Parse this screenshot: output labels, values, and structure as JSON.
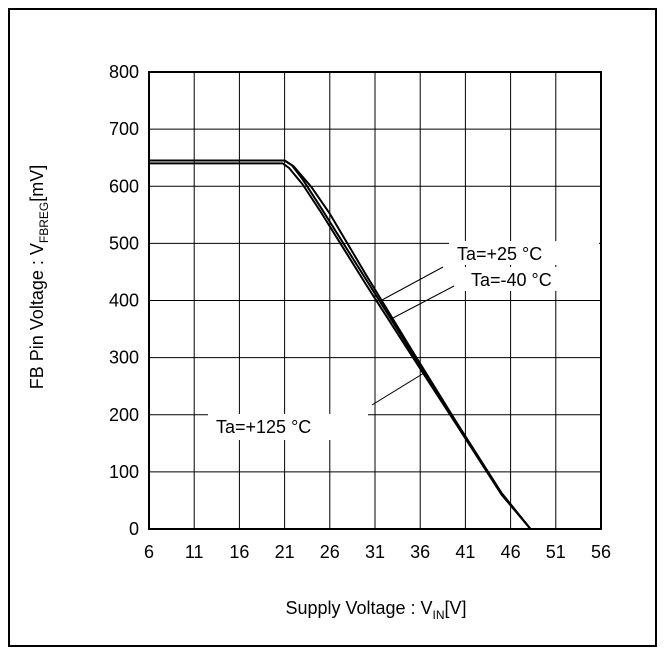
{
  "chart_data": {
    "type": "line",
    "title": "",
    "xlabel": {
      "main": "Supply Voltage : V",
      "sub": "IN",
      "unit": "[V]"
    },
    "ylabel": {
      "main": "FB Pin Voltage : V",
      "sub": "FBREG",
      "unit": "[mV]"
    },
    "xlim": [
      6,
      56
    ],
    "ylim": [
      0,
      800
    ],
    "xticks": [
      6,
      11,
      16,
      21,
      26,
      31,
      36,
      41,
      46,
      51,
      56
    ],
    "yticks": [
      0,
      100,
      200,
      300,
      400,
      500,
      600,
      700,
      800
    ],
    "grid": true,
    "series": [
      {
        "name": "Ta=+25 °C",
        "x": [
          6,
          21,
          21.8,
          23,
          25,
          30,
          35,
          40,
          45,
          48.2
        ],
        "y": [
          645,
          645,
          637,
          612,
          563,
          437,
          311,
          185,
          62,
          0
        ]
      },
      {
        "name": "Ta=-40 °C",
        "x": [
          6,
          21,
          22,
          24,
          26,
          30,
          35,
          40,
          45,
          48.2
        ],
        "y": [
          645,
          645,
          635,
          598,
          552,
          445,
          315,
          187,
          63,
          0
        ]
      },
      {
        "name": "Ta=+125 °C",
        "x": [
          6,
          20.8,
          21.5,
          23,
          25,
          30,
          35,
          40,
          45,
          48.2
        ],
        "y": [
          640,
          640,
          632,
          603,
          555,
          428,
          305,
          183,
          60,
          0
        ]
      }
    ],
    "annotations": [
      {
        "text": "Ta=+25 °C",
        "series": 0
      },
      {
        "text": "Ta=-40 °C",
        "series": 1
      },
      {
        "text": "Ta=+125 °C",
        "series": 2
      }
    ]
  }
}
